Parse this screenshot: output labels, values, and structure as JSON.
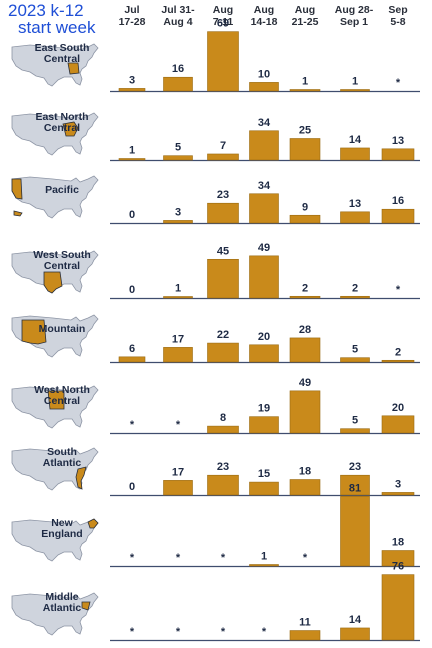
{
  "title": {
    "line1": "2023  k-12",
    "line2": "start week"
  },
  "columns": [
    {
      "line1": "Jul",
      "line2": "17-28"
    },
    {
      "line1": "Jul 31-",
      "line2": "Aug 4"
    },
    {
      "line1": "Aug",
      "line2": "7-11"
    },
    {
      "line1": "Aug",
      "line2": "14-18"
    },
    {
      "line1": "Aug",
      "line2": "21-25"
    },
    {
      "line1": "Aug 28-",
      "line2": "Sep 1"
    },
    {
      "line1": "Sep",
      "line2": "5-8"
    }
  ],
  "colors": {
    "bar": "#c98a1b",
    "bar_edge": "#9a6a12",
    "baseline": "#3f4d6e",
    "map": "#cfd4dd",
    "map_edge": "#8d95a5",
    "highlight": "#c98a1b"
  },
  "chart_data": {
    "type": "bar",
    "categories": [
      "Jul 17-28",
      "Jul 31-Aug 4",
      "Aug 7-11",
      "Aug 14-18",
      "Aug 21-25",
      "Aug 28-Sep 1",
      "Sep 5-8"
    ],
    "ylim": [
      0,
      85
    ],
    "series": [
      {
        "name": "East South Central",
        "label_lines": [
          "East South",
          "Central"
        ],
        "values": [
          3,
          16,
          69,
          10,
          1,
          1,
          null
        ],
        "labels": [
          "3",
          "16",
          "69",
          "10",
          "1",
          "1",
          "*"
        ]
      },
      {
        "name": "East North Central",
        "label_lines": [
          "East North",
          "Central"
        ],
        "values": [
          1,
          5,
          7,
          34,
          25,
          14,
          13
        ],
        "labels": [
          "1",
          "5",
          "7",
          "34",
          "25",
          "14",
          "13"
        ]
      },
      {
        "name": "Pacific",
        "label_lines": [
          "Pacific"
        ],
        "values": [
          0,
          3,
          23,
          34,
          9,
          13,
          16
        ],
        "labels": [
          "0",
          "3",
          "23",
          "34",
          "9",
          "13",
          "16"
        ]
      },
      {
        "name": "West South Central",
        "label_lines": [
          "West South",
          "Central"
        ],
        "values": [
          0,
          1,
          45,
          49,
          2,
          2,
          null
        ],
        "labels": [
          "0",
          "1",
          "45",
          "49",
          "2",
          "2",
          "*"
        ]
      },
      {
        "name": "Mountain",
        "label_lines": [
          "Mountain"
        ],
        "values": [
          6,
          17,
          22,
          20,
          28,
          5,
          2
        ],
        "labels": [
          "6",
          "17",
          "22",
          "20",
          "28",
          "5",
          "2"
        ]
      },
      {
        "name": "West North Central",
        "label_lines": [
          "West North",
          "Central"
        ],
        "values": [
          null,
          null,
          8,
          19,
          49,
          5,
          20
        ],
        "labels": [
          "*",
          "*",
          "8",
          "19",
          "49",
          "5",
          "20"
        ]
      },
      {
        "name": "South Atlantic",
        "label_lines": [
          "South",
          "Atlantic"
        ],
        "values": [
          0,
          17,
          23,
          15,
          18,
          23,
          3
        ],
        "labels": [
          "0",
          "17",
          "23",
          "15",
          "18",
          "23",
          "3"
        ]
      },
      {
        "name": "New England",
        "label_lines": [
          "New",
          "England"
        ],
        "values": [
          null,
          null,
          null,
          1,
          null,
          81,
          18
        ],
        "labels": [
          "*",
          "*",
          "*",
          "1",
          "*",
          "81",
          "18"
        ]
      },
      {
        "name": "Middle Atlantic",
        "label_lines": [
          "Middle",
          "Atlantic"
        ],
        "values": [
          null,
          null,
          null,
          null,
          11,
          14,
          76
        ],
        "labels": [
          "*",
          "*",
          "*",
          "*",
          "11",
          "14",
          "76"
        ]
      }
    ]
  }
}
